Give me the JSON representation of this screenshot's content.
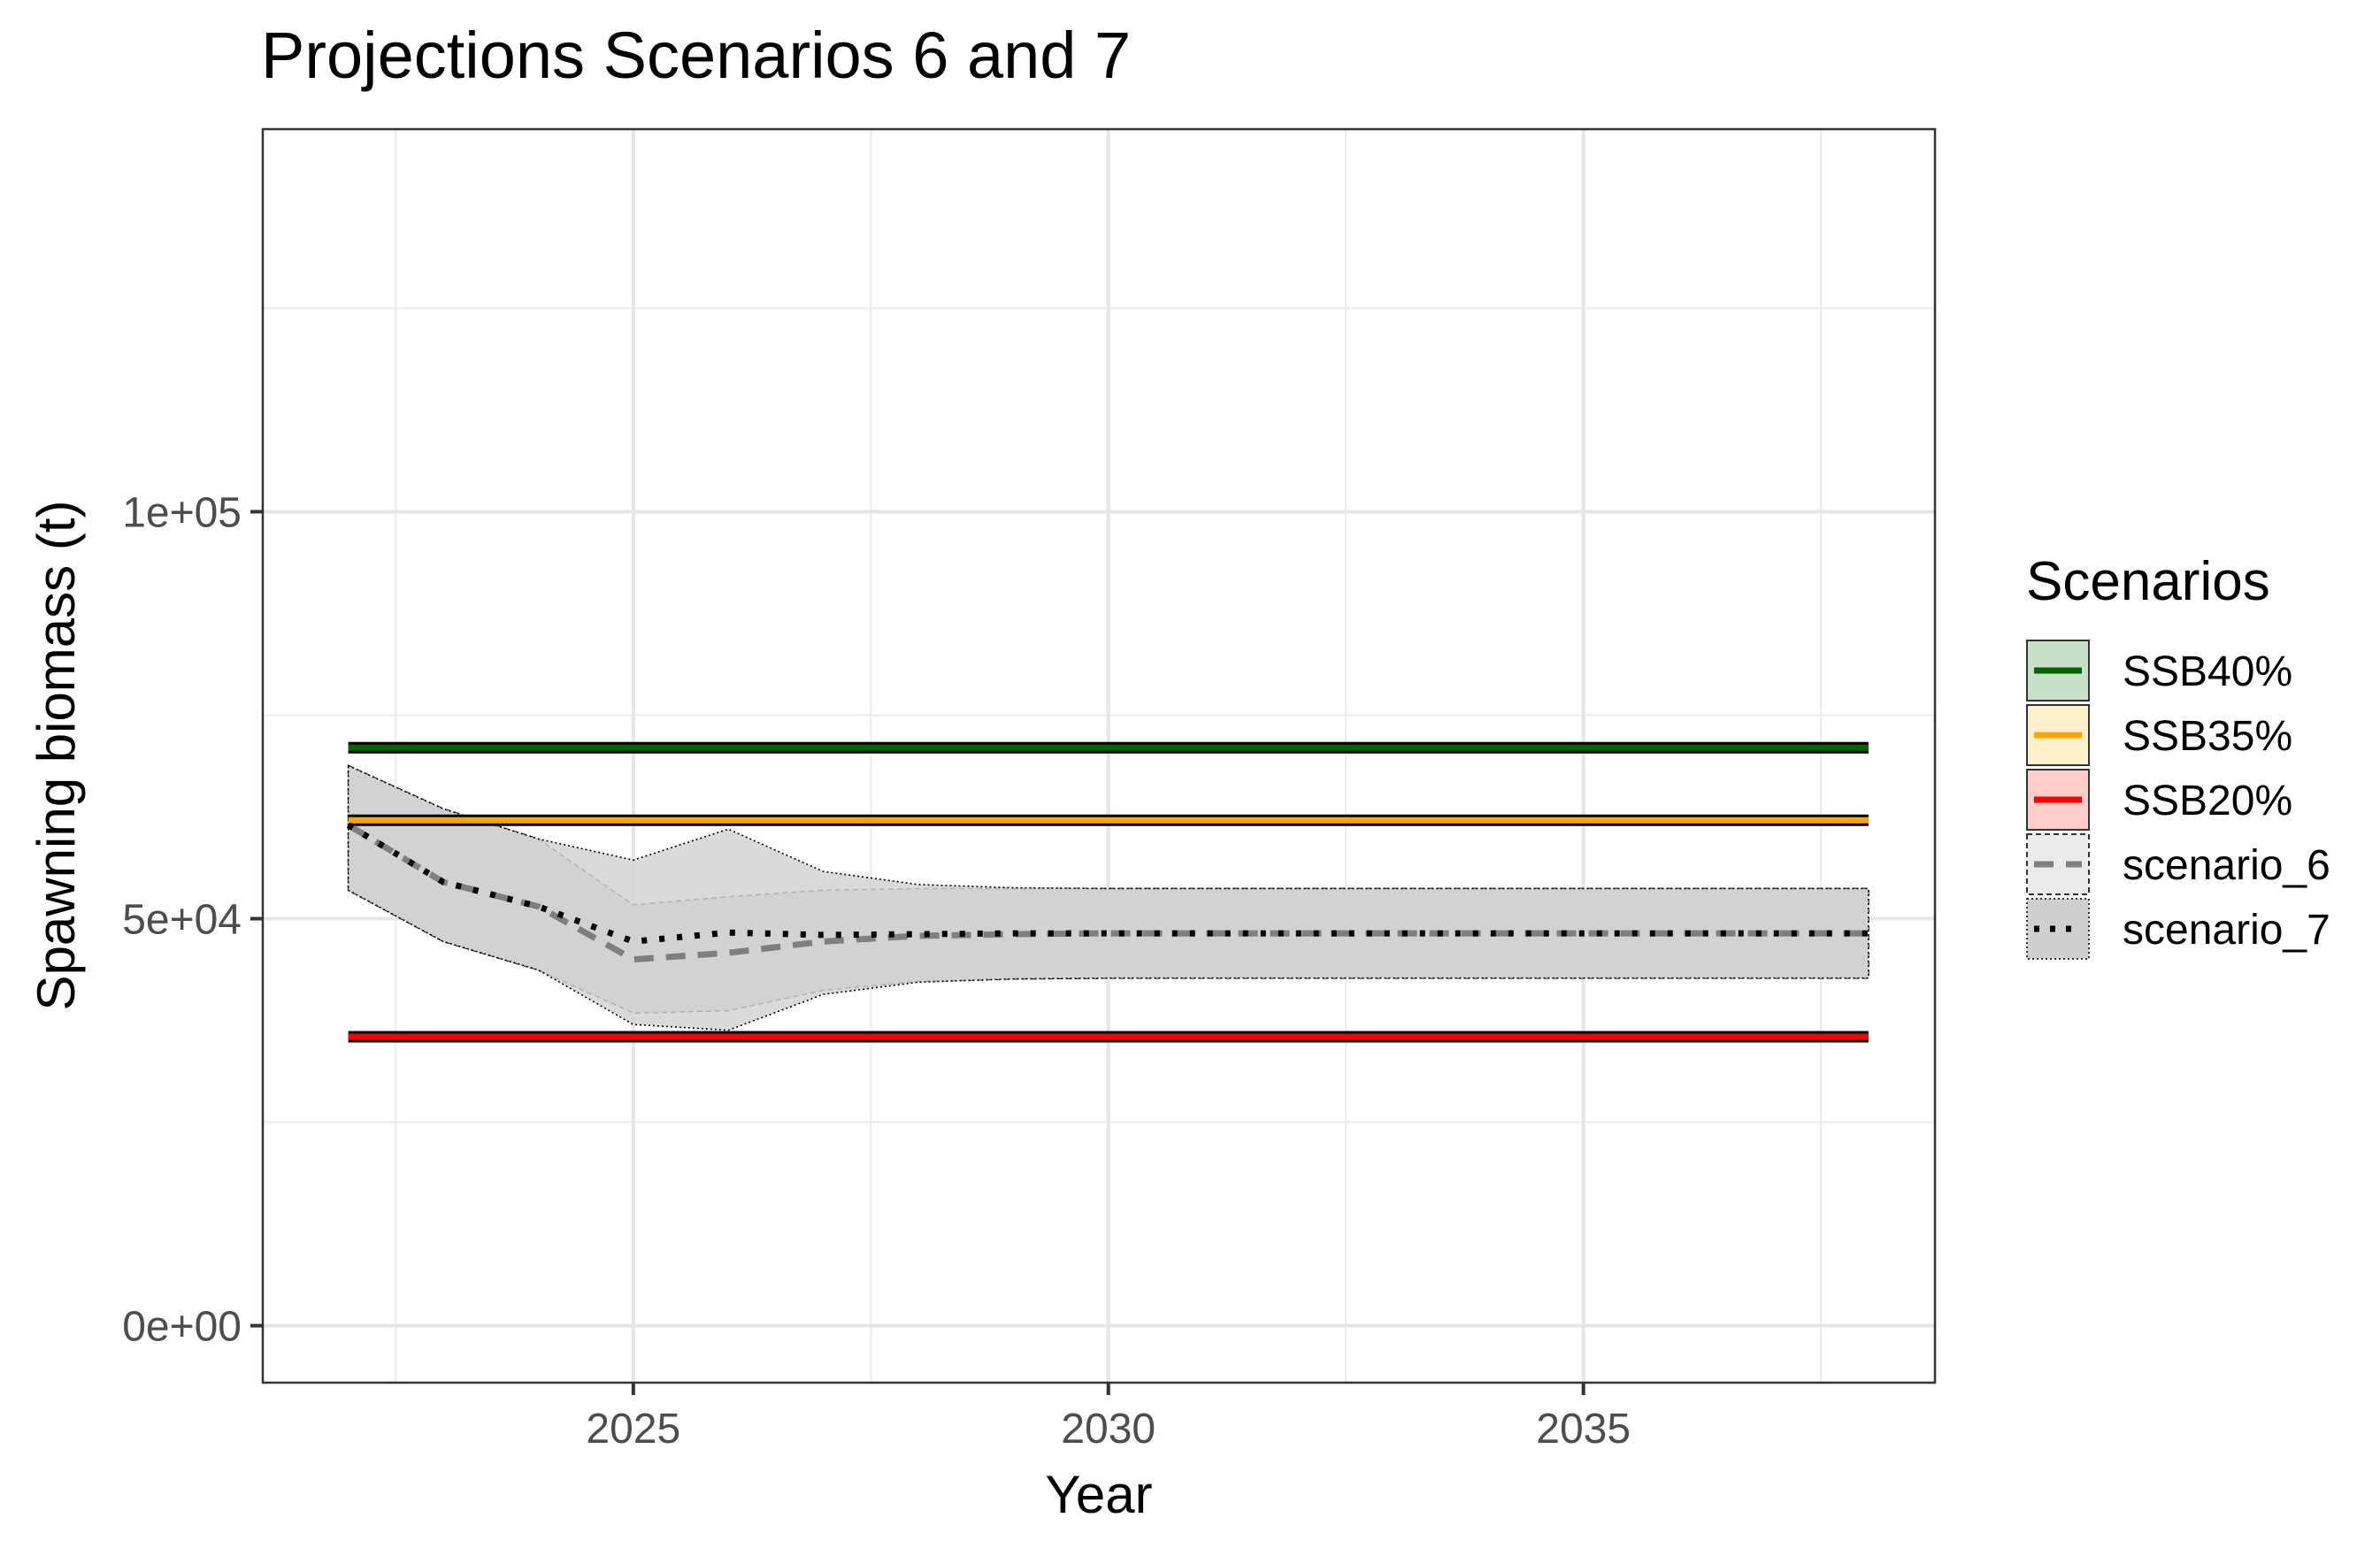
{
  "chart_data": {
    "type": "line",
    "title": "Projections Scenarios 6 and 7",
    "xlabel": "Year",
    "ylabel": "Spawning biomass (t)",
    "xlim": [
      2021.1,
      2038.7
    ],
    "ylim": [
      -7000,
      147000
    ],
    "x_ticks": [
      2025,
      2030,
      2035
    ],
    "x_tick_labels": [
      "2025",
      "2030",
      "2035"
    ],
    "y_ticks": [
      0,
      50000,
      100000
    ],
    "y_tick_labels": [
      "0e+00",
      "5e+04",
      "1e+05"
    ],
    "x_minor_grid": [
      2022.5,
      2027.5,
      2032.5,
      2037.5
    ],
    "y_minor_grid": [
      25000,
      75000,
      125000
    ],
    "grid": true,
    "legend": {
      "title": "Scenarios",
      "position": "right",
      "items": [
        {
          "label": "SSB40%",
          "color": "#006400",
          "fill": "#c8dfc8",
          "style": "solid"
        },
        {
          "label": "SSB35%",
          "color": "#ffa500",
          "fill": "#fff0cc",
          "style": "solid"
        },
        {
          "label": "SSB20%",
          "color": "#ff0000",
          "fill": "#ffcccc",
          "style": "solid"
        },
        {
          "label": "scenario_6",
          "color": "#7f7f7f",
          "fill": "#ebebeb",
          "style": "dashed"
        },
        {
          "label": "scenario_7",
          "color": "#000000",
          "fill": "#cfcfcf",
          "style": "dotted"
        }
      ]
    },
    "reference_lines": [
      {
        "name": "SSB40%",
        "y": 71000,
        "x_range": [
          2022,
          2038
        ],
        "color": "#006400"
      },
      {
        "name": "SSB35%",
        "y": 62100,
        "x_range": [
          2022,
          2038
        ],
        "color": "#ffa500"
      },
      {
        "name": "SSB20%",
        "y": 35500,
        "x_range": [
          2022,
          2038
        ],
        "color": "#ff0000"
      }
    ],
    "series": [
      {
        "name": "scenario_6",
        "color": "#7f7f7f",
        "style": "dashed",
        "x": [
          2022,
          2023,
          2024,
          2025,
          2026,
          2027,
          2028,
          2029,
          2030,
          2031,
          2032,
          2033,
          2034,
          2035,
          2036,
          2037,
          2038
        ],
        "values": [
          61500,
          54500,
          51500,
          45000,
          45800,
          47200,
          47900,
          48100,
          48200,
          48200,
          48200,
          48200,
          48200,
          48200,
          48200,
          48200,
          48200
        ],
        "lower": [
          53500,
          47200,
          43700,
          38400,
          38700,
          41200,
          42300,
          42600,
          42700,
          42700,
          42700,
          42700,
          42700,
          42700,
          42700,
          42700,
          42700
        ],
        "upper": [
          68800,
          63500,
          59800,
          51700,
          52700,
          53500,
          53700,
          53700,
          53700,
          53700,
          53700,
          53700,
          53700,
          53700,
          53700,
          53700,
          53700
        ],
        "ribbon_fill": "#c0c0c0"
      },
      {
        "name": "scenario_7",
        "color": "#000000",
        "style": "dotted",
        "x": [
          2022,
          2023,
          2024,
          2025,
          2026,
          2027,
          2028,
          2029,
          2030,
          2031,
          2032,
          2033,
          2034,
          2035,
          2036,
          2037,
          2038
        ],
        "values": [
          61500,
          54500,
          51500,
          47200,
          48300,
          48000,
          48100,
          48200,
          48200,
          48200,
          48200,
          48200,
          48200,
          48200,
          48200,
          48200,
          48200
        ],
        "lower": [
          53500,
          47200,
          43700,
          37000,
          36300,
          40700,
          42200,
          42600,
          42700,
          42700,
          42700,
          42700,
          42700,
          42700,
          42700,
          42700,
          42700
        ],
        "upper": [
          68800,
          63500,
          59800,
          57200,
          61000,
          55800,
          54200,
          53800,
          53700,
          53700,
          53700,
          53700,
          53700,
          53700,
          53700,
          53700,
          53700
        ],
        "ribbon_fill": "#d3d3d3"
      }
    ]
  }
}
